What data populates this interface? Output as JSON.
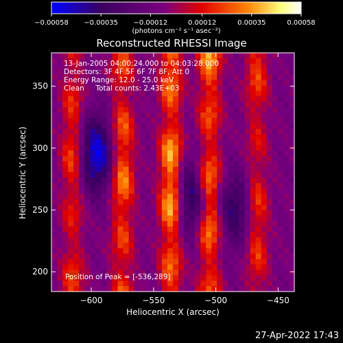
{
  "chart_data": {
    "type": "heatmap",
    "title": "Reconstructed RHESSI Image",
    "xlabel": "Heliocentric X (arcsec)",
    "ylabel": "Heliocentric Y (arcsec)",
    "xlim": [
      -632,
      -437
    ],
    "ylim": [
      184,
      377
    ],
    "xticks": [
      -600,
      -550,
      -500,
      -450
    ],
    "xtick_labels": [
      "−600",
      "−550",
      "−500",
      "−450"
    ],
    "yticks": [
      200,
      250,
      300,
      350
    ],
    "ytick_labels": [
      "200",
      "250",
      "300",
      "350"
    ],
    "colorbar": {
      "range": [
        -0.00058,
        0.00058
      ],
      "ticks": [
        -0.00058,
        -0.00035,
        -0.00012,
        0.00012,
        0.00035,
        0.00058
      ],
      "tick_labels": [
        "−0.00058",
        "−0.00035",
        "−0.00012",
        "0.00012",
        "0.00035",
        "0.00058"
      ],
      "units_label": "(photons cm⁻² s⁻¹ asec⁻²)",
      "colors": [
        "#0000ff",
        "#3a0060",
        "#7a0080",
        "#e00000",
        "#ff8000",
        "#ffff80",
        "#ffffff"
      ]
    },
    "annotations": [
      "13-Jan-2005 04:00:24.000 to 04:03:28.000",
      "Detectors: 3F 4F 5F 6F 7F 8F, Att 0",
      "Energy Range: 12.0 - 25.0 keV",
      "Clean     Total counts: 2.43E+03"
    ],
    "peak_label": "Position of Peak = [-536,289]",
    "peak_position": [
      -536,
      289
    ],
    "bright_stripes": [
      {
        "x": -615,
        "peak": 0.00035
      },
      {
        "x": -575,
        "peak": 0.00045
      },
      {
        "x": -536,
        "peak": 0.00058
      },
      {
        "x": -505,
        "peak": 0.0005
      },
      {
        "x": -467,
        "peak": 0.00032
      }
    ],
    "dark_regions": [
      {
        "x": -596,
        "y": 295,
        "value": -0.00058
      },
      {
        "x": -520,
        "y": 260,
        "value": -0.0004
      },
      {
        "x": -485,
        "y": 250,
        "value": -0.00035
      }
    ]
  },
  "timestamp": "27-Apr-2022 17:43"
}
